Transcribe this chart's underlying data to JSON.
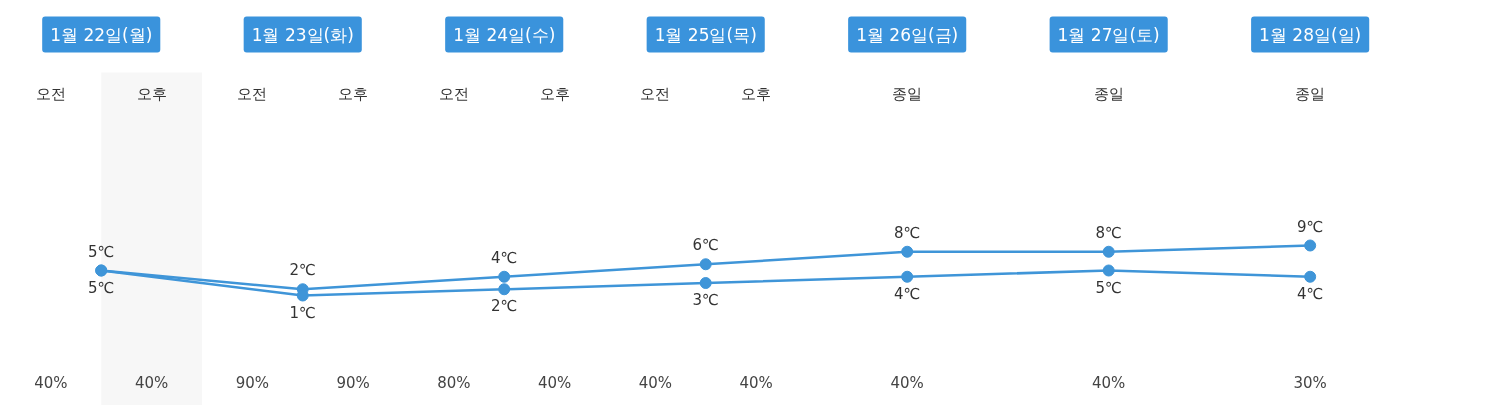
{
  "chart_data": {
    "type": "line",
    "categories": [
      "1월 22일(월)",
      "1월 23일(화)",
      "1월 24일(수)",
      "1월 25일(목)",
      "1월 26일(금)",
      "1월 27일(토)",
      "1월 28일(일)"
    ],
    "series": [
      {
        "color": "#3f95d8",
        "values": [
          5,
          2,
          4,
          6,
          8,
          8,
          9
        ],
        "value_labels": [
          "5℃",
          "2℃",
          "4℃",
          "6℃",
          "8℃",
          "8℃",
          "9℃"
        ]
      },
      {
        "color": "#3f95d8",
        "values": [
          5,
          1,
          2,
          3,
          4,
          5,
          4
        ],
        "value_labels": [
          "5℃",
          "1℃",
          "2℃",
          "3℃",
          "4℃",
          "5℃",
          "4℃"
        ]
      }
    ],
    "marker": "circle",
    "line_style": "solid",
    "bands": [
      {
        "axis": "x",
        "from": "1월 22일(월)",
        "to": "1월 22일(월)",
        "color": "#f7f7f7"
      }
    ],
    "annotations": [
      "오전",
      "40%",
      "오후",
      "40%",
      "오전",
      "90%",
      "오후",
      "90%",
      "오전",
      "80%",
      "오후",
      "40%",
      "오전",
      "40%",
      "오후",
      "40%",
      "종일",
      "40%",
      "종일",
      "40%",
      "종일",
      "30%"
    ]
  }
}
